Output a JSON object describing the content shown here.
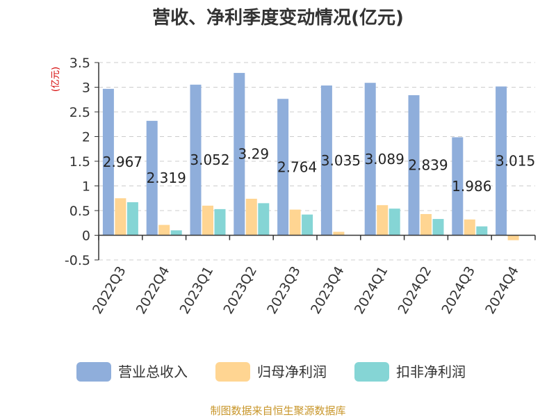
{
  "source": "制图数据来自恒生聚源数据库",
  "colors": {
    "revenue": "#8FAEDB",
    "parent_net_profit": "#FFD592",
    "deducted_net_profit": "#85D5D5",
    "unit_text": "#d40000",
    "source_text": "#c8962a",
    "grid": "#cccccc",
    "axis": "#333333"
  },
  "chart_data": {
    "type": "bar",
    "title": "营收、净利季度变动情况(亿元)",
    "unit_label": "(亿元)",
    "categories": [
      "2022Q3",
      "2022Q4",
      "2023Q1",
      "2023Q2",
      "2023Q3",
      "2023Q4",
      "2024Q1",
      "2024Q2",
      "2024Q3",
      "2024Q4"
    ],
    "series": [
      {
        "name": "营业总收入",
        "values": [
          2.967,
          2.319,
          3.052,
          3.29,
          2.764,
          3.035,
          3.089,
          2.839,
          1.986,
          3.015
        ]
      },
      {
        "name": "归母净利润",
        "values": [
          0.75,
          0.21,
          0.6,
          0.74,
          0.52,
          0.07,
          0.61,
          0.43,
          0.32,
          -0.1
        ]
      },
      {
        "name": "扣非净利润",
        "values": [
          0.67,
          0.1,
          0.53,
          0.65,
          0.42,
          0.0,
          0.54,
          0.33,
          0.18,
          -0.01
        ]
      }
    ],
    "data_labels": [
      "2.967",
      "2.319",
      "3.052",
      "3.29",
      "2.764",
      "3.035",
      "3.089",
      "2.839",
      "1.986",
      "3.015"
    ],
    "yticks": [
      "-0.5",
      "0",
      "0.5",
      "1",
      "1.5",
      "2",
      "2.5",
      "3",
      "3.5"
    ],
    "ylim": [
      -0.5,
      3.5
    ],
    "grid": true,
    "legend_position": "bottom"
  }
}
